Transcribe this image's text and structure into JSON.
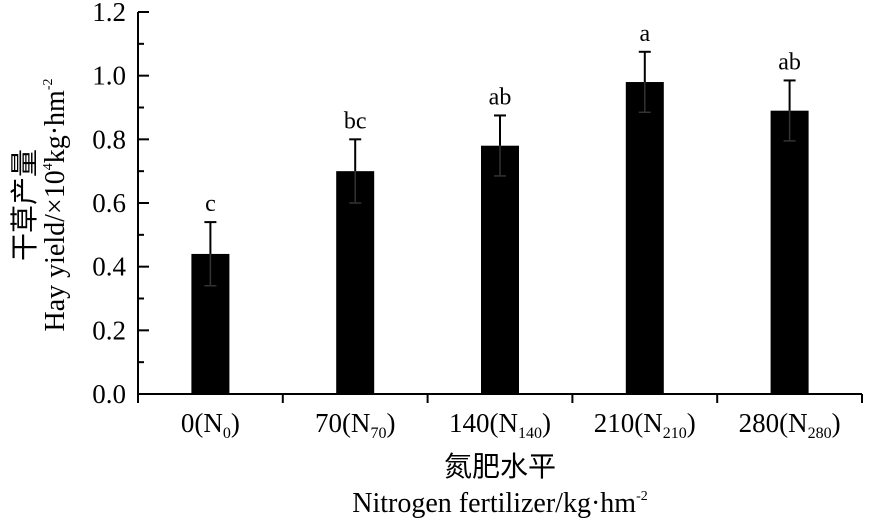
{
  "chart_data": {
    "type": "bar",
    "categories": [
      {
        "main": "0(N",
        "sub": "0",
        "close": ")"
      },
      {
        "main": "70(N",
        "sub": "70",
        "close": ")"
      },
      {
        "main": "140(N",
        "sub": "140",
        "close": ")"
      },
      {
        "main": "210(N",
        "sub": "210",
        "close": ")"
      },
      {
        "main": "280(N",
        "sub": "280",
        "close": ")"
      }
    ],
    "values": [
      0.44,
      0.7,
      0.78,
      0.98,
      0.89
    ],
    "errors": [
      0.1,
      0.1,
      0.095,
      0.095,
      0.095
    ],
    "significance": [
      "c",
      "bc",
      "ab",
      "a",
      "ab"
    ],
    "ylim": [
      0,
      1.2
    ],
    "yticks": [
      "0.0",
      "0.2",
      "0.4",
      "0.6",
      "0.8",
      "1.0",
      "1.2"
    ],
    "ylabel_cn": "干草产量",
    "ylabel_en_prefix": "Hay yield/×10",
    "ylabel_en_exp": "4",
    "ylabel_en_unit": "kg·hm",
    "ylabel_en_unit_exp": "-2",
    "xlabel_cn": "氮肥水平",
    "xlabel_en": "Nitrogen fertilizer/kg·hm",
    "xlabel_en_exp": "-2",
    "bar_color": "#000000",
    "grid": false
  }
}
